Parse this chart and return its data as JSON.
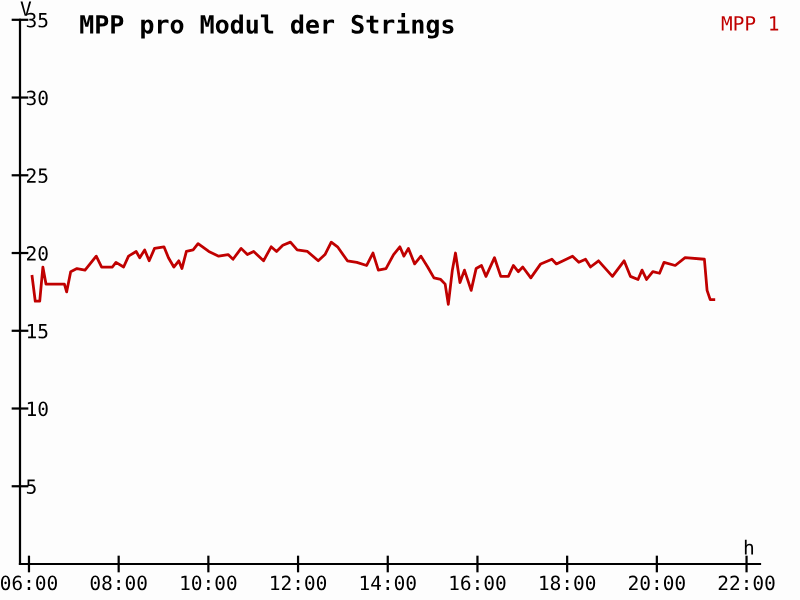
{
  "chart_data": {
    "type": "line",
    "title": "MPP pro Modul der Strings",
    "xlabel": "h",
    "ylabel": "V",
    "xlim": [
      5.8,
      22.3
    ],
    "ylim": [
      0,
      35
    ],
    "xticks": [
      {
        "value": 6,
        "label": "06:00"
      },
      {
        "value": 8,
        "label": "08:00"
      },
      {
        "value": 10,
        "label": "10:00"
      },
      {
        "value": 12,
        "label": "12:00"
      },
      {
        "value": 14,
        "label": "14:00"
      },
      {
        "value": 16,
        "label": "16:00"
      },
      {
        "value": 18,
        "label": "18:00"
      },
      {
        "value": 20,
        "label": "20:00"
      },
      {
        "value": 22,
        "label": "22:00"
      }
    ],
    "yticks": [
      5,
      10,
      15,
      20,
      25,
      30,
      35
    ],
    "grid": false,
    "legend": "top right",
    "marker": "none",
    "line_style": "solid",
    "series": [
      {
        "name": "MPP 1",
        "color": "#c00000",
        "x": [
          6.07,
          6.14,
          6.24,
          6.31,
          6.38,
          6.79,
          6.84,
          6.93,
          7.07,
          7.25,
          7.5,
          7.62,
          7.86,
          7.94,
          8.11,
          8.22,
          8.39,
          8.47,
          8.58,
          8.68,
          8.8,
          9.01,
          9.11,
          9.23,
          9.34,
          9.41,
          9.51,
          9.66,
          9.77,
          10.01,
          10.23,
          10.44,
          10.55,
          10.73,
          10.87,
          11.01,
          11.23,
          11.4,
          11.52,
          11.66,
          11.83,
          11.98,
          12.21,
          12.45,
          12.6,
          12.74,
          12.88,
          13.1,
          13.31,
          13.53,
          13.67,
          13.79,
          13.96,
          14.13,
          14.27,
          14.36,
          14.46,
          14.6,
          14.74,
          14.89,
          15.03,
          15.18,
          15.28,
          15.35,
          15.44,
          15.51,
          15.61,
          15.71,
          15.86,
          15.97,
          16.09,
          16.19,
          16.38,
          16.52,
          16.69,
          16.8,
          16.91,
          17.01,
          17.19,
          17.41,
          17.66,
          17.76,
          18.12,
          18.26,
          18.41,
          18.52,
          18.7,
          19.01,
          19.27,
          19.41,
          19.58,
          19.67,
          19.77,
          19.91,
          20.06,
          20.16,
          20.41,
          20.63,
          21.06,
          21.12,
          21.19,
          21.27
        ],
        "values": [
          18.5,
          16.9,
          16.9,
          19.1,
          18.0,
          18.0,
          17.5,
          18.8,
          19.0,
          18.9,
          19.8,
          19.1,
          19.1,
          19.4,
          19.1,
          19.8,
          20.1,
          19.7,
          20.2,
          19.5,
          20.3,
          20.4,
          19.7,
          19.1,
          19.5,
          19.0,
          20.1,
          20.2,
          20.6,
          20.1,
          19.8,
          19.9,
          19.6,
          20.3,
          19.9,
          20.1,
          19.5,
          20.4,
          20.1,
          20.5,
          20.7,
          20.2,
          20.1,
          19.5,
          19.9,
          20.7,
          20.4,
          19.5,
          19.4,
          19.2,
          20.0,
          18.9,
          19.0,
          19.9,
          20.4,
          19.8,
          20.3,
          19.3,
          19.8,
          19.1,
          18.4,
          18.3,
          18.0,
          16.7,
          18.9,
          20.0,
          18.1,
          18.9,
          17.6,
          19.0,
          19.2,
          18.5,
          19.7,
          18.5,
          18.5,
          19.2,
          18.8,
          19.1,
          18.4,
          19.3,
          19.6,
          19.3,
          19.8,
          19.4,
          19.6,
          19.1,
          19.5,
          18.5,
          19.5,
          18.5,
          18.3,
          18.9,
          18.3,
          18.8,
          18.7,
          19.4,
          19.2,
          19.7,
          19.6,
          17.6,
          17.0,
          17.0
        ]
      }
    ]
  }
}
